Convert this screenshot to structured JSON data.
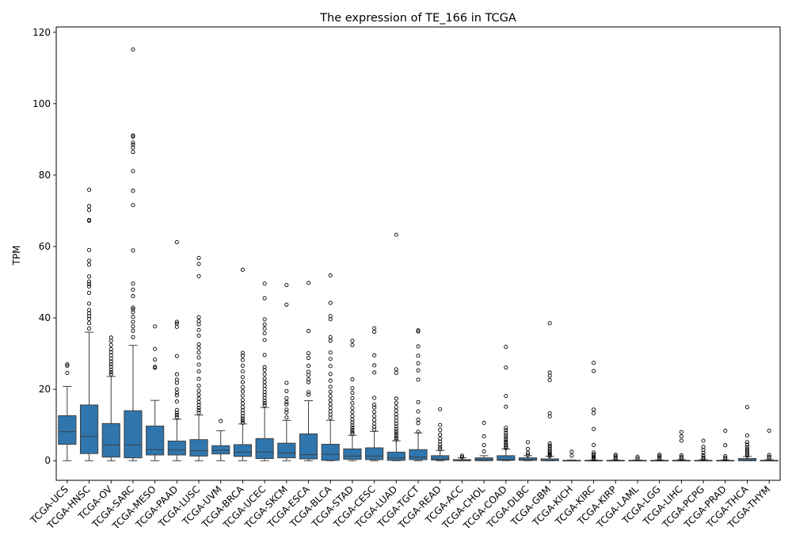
{
  "chart_data": {
    "type": "box",
    "title": "The expression of TE_166 in TCGA",
    "xlabel": "",
    "ylabel": "TPM",
    "ylim": [
      -5.5,
      121.5
    ],
    "yticks": [
      0,
      20,
      40,
      60,
      80,
      100,
      120
    ],
    "grid": false,
    "box_color": "#2f76ae",
    "categories": [
      "TCGA-UCS",
      "TCGA-HNSC",
      "TCGA-OV",
      "TCGA-SARC",
      "TCGA-MESO",
      "TCGA-PAAD",
      "TCGA-LUSC",
      "TCGA-UVM",
      "TCGA-BRCA",
      "TCGA-UCEC",
      "TCGA-SKCM",
      "TCGA-ESCA",
      "TCGA-BLCA",
      "TCGA-STAD",
      "TCGA-CESC",
      "TCGA-LUAD",
      "TCGA-TGCT",
      "TCGA-READ",
      "TCGA-ACC",
      "TCGA-CHOL",
      "TCGA-COAD",
      "TCGA-DLBC",
      "TCGA-GBM",
      "TCGA-KICH",
      "TCGA-KIRC",
      "TCGA-KIRP",
      "TCGA-LAML",
      "TCGA-LGG",
      "TCGA-LIHC",
      "TCGA-PCPG",
      "TCGA-PRAD",
      "TCGA-THCA",
      "TCGA-THYM"
    ],
    "boxes": [
      {
        "whislo": 0.0,
        "q1": 4.6,
        "med": 8.1,
        "q3": 12.6,
        "whishi": 20.8,
        "fliers": [
          24.6,
          26.6,
          27.0
        ]
      },
      {
        "whislo": 0.0,
        "q1": 2.0,
        "med": 6.8,
        "q3": 15.6,
        "whishi": 36.0,
        "fliers": [
          37.0,
          38.5,
          39.7,
          40.5,
          41.3,
          42.2,
          44.0,
          47.0,
          48.8,
          49.5,
          50.2,
          51.6,
          54.9,
          56.0,
          59.0,
          67.2,
          67.4,
          70.2,
          71.3,
          75.9
        ]
      },
      {
        "whislo": 0.0,
        "q1": 1.0,
        "med": 4.4,
        "q3": 10.4,
        "whishi": 23.6,
        "fliers": [
          24.2,
          24.8,
          25.5,
          26.3,
          27.0,
          27.8,
          28.6,
          29.5,
          30.4,
          31.2,
          32.4,
          33.6,
          34.5
        ]
      },
      {
        "whislo": 0.0,
        "q1": 0.8,
        "med": 4.4,
        "q3": 14.0,
        "whishi": 32.3,
        "fliers": [
          34.6,
          36.4,
          37.6,
          38.9,
          40.3,
          41.6,
          42.4,
          42.9,
          46.1,
          47.9,
          49.6,
          58.9,
          71.6,
          75.6,
          81.1,
          86.5,
          87.7,
          88.5,
          89.1,
          90.8,
          91.1,
          115.2
        ]
      },
      {
        "whislo": 0.0,
        "q1": 1.6,
        "med": 3.1,
        "q3": 9.7,
        "whishi": 16.9,
        "fliers": [
          26.0,
          26.3,
          28.3,
          31.3,
          37.6
        ]
      },
      {
        "whislo": 0.0,
        "q1": 1.6,
        "med": 3.0,
        "q3": 5.5,
        "whishi": 11.6,
        "fliers": [
          12.2,
          12.8,
          13.4,
          14.2,
          16.6,
          18.3,
          19.0,
          20.0,
          21.8,
          22.7,
          24.2,
          29.3,
          37.5,
          38.4,
          38.9,
          61.2
        ]
      },
      {
        "whislo": 0.0,
        "q1": 1.3,
        "med": 2.8,
        "q3": 5.9,
        "whishi": 12.8,
        "fliers": [
          13.4,
          14.1,
          14.8,
          15.6,
          16.4,
          17.4,
          18.5,
          19.6,
          21.0,
          22.9,
          25.0,
          26.9,
          28.9,
          30.3,
          31.6,
          32.6,
          35.0,
          36.6,
          38.2,
          39.1,
          40.2,
          51.7,
          55.1,
          56.8
        ]
      },
      {
        "whislo": 0.0,
        "q1": 1.9,
        "med": 2.9,
        "q3": 4.2,
        "whishi": 8.4,
        "fliers": [
          11.1
        ]
      },
      {
        "whislo": 0.0,
        "q1": 1.2,
        "med": 2.4,
        "q3": 4.5,
        "whishi": 10.3,
        "fliers": [
          10.6,
          11.2,
          11.8,
          12.5,
          13.3,
          14.1,
          15.0,
          16.0,
          17.0,
          18.2,
          19.4,
          20.6,
          22.0,
          23.4,
          25.0,
          26.6,
          28.2,
          29.4,
          30.2,
          53.5
        ]
      },
      {
        "whislo": 0.0,
        "q1": 0.6,
        "med": 2.4,
        "q3": 6.2,
        "whishi": 14.9,
        "fliers": [
          15.5,
          16.1,
          16.8,
          17.6,
          18.4,
          19.2,
          20.1,
          21.0,
          22.0,
          23.0,
          24.2,
          25.4,
          26.2,
          29.6,
          33.8,
          35.7,
          37.0,
          38.2,
          39.6,
          45.5,
          49.6
        ]
      },
      {
        "whislo": 0.0,
        "q1": 0.8,
        "med": 2.2,
        "q3": 4.9,
        "whishi": 11.3,
        "fliers": [
          12.1,
          13.5,
          14.3,
          15.8,
          16.4,
          17.5,
          19.5,
          21.8,
          43.7,
          49.2
        ]
      },
      {
        "whislo": 0.0,
        "q1": 0.5,
        "med": 1.7,
        "q3": 7.5,
        "whishi": 16.8,
        "fliers": [
          18.5,
          19.2,
          22.0,
          22.8,
          24.0,
          24.9,
          26.6,
          28.8,
          30.1,
          36.3,
          49.8
        ]
      },
      {
        "whislo": 0.0,
        "q1": 0.1,
        "med": 1.8,
        "q3": 4.6,
        "whishi": 11.3,
        "fliers": [
          12.0,
          12.9,
          13.8,
          14.8,
          15.8,
          16.9,
          18.1,
          19.3,
          20.7,
          22.4,
          24.3,
          26.5,
          28.5,
          30.3,
          33.6,
          34.6,
          39.6,
          40.5,
          44.2,
          51.9
        ]
      },
      {
        "whislo": 0.0,
        "q1": 0.4,
        "med": 1.3,
        "q3": 3.3,
        "whishi": 7.1,
        "fliers": [
          7.5,
          8.0,
          8.6,
          9.2,
          9.9,
          10.7,
          11.5,
          12.5,
          13.6,
          14.8,
          16.1,
          17.5,
          19.0,
          20.3,
          22.8,
          32.4,
          33.6
        ]
      },
      {
        "whislo": 0.0,
        "q1": 0.3,
        "med": 1.3,
        "q3": 3.6,
        "whishi": 8.2,
        "fliers": [
          8.7,
          9.5,
          10.4,
          11.4,
          12.5,
          13.7,
          14.9,
          15.7,
          17.6,
          24.7,
          26.7,
          29.5,
          36.1,
          37.1
        ]
      },
      {
        "whislo": 0.0,
        "q1": 0.1,
        "med": 0.8,
        "q3": 2.4,
        "whishi": 5.6,
        "fliers": [
          5.9,
          6.4,
          7.0,
          7.6,
          8.2,
          8.9,
          9.6,
          10.4,
          11.2,
          12.1,
          13.0,
          14.0,
          15.0,
          16.2,
          17.4,
          24.6,
          25.6,
          63.3
        ]
      },
      {
        "whislo": 0.0,
        "q1": 0.3,
        "med": 1.0,
        "q3": 3.1,
        "whishi": 7.8,
        "fliers": [
          8.1,
          10.5,
          11.5,
          13.8,
          16.4,
          22.7,
          25.3,
          27.3,
          29.4,
          32.0,
          36.2,
          36.5
        ]
      },
      {
        "whislo": 0.0,
        "q1": 0.2,
        "med": 0.4,
        "q3": 1.4,
        "whishi": 2.9,
        "fliers": [
          3.2,
          3.8,
          4.5,
          5.3,
          6.2,
          7.3,
          8.6,
          10.0,
          14.4
        ]
      },
      {
        "whislo": 0.0,
        "q1": 0.0,
        "med": 0.0,
        "q3": 0.3,
        "whishi": 0.8,
        "fliers": [
          1.0,
          1.4
        ]
      },
      {
        "whislo": 0.0,
        "q1": 0.0,
        "med": 0.3,
        "q3": 0.8,
        "whishi": 1.4,
        "fliers": [
          2.6,
          4.4,
          6.8,
          10.6
        ]
      },
      {
        "whislo": 0.0,
        "q1": 0.1,
        "med": 0.3,
        "q3": 1.4,
        "whishi": 3.3,
        "fliers": [
          3.5,
          3.9,
          4.3,
          4.8,
          5.3,
          5.9,
          6.5,
          7.1,
          7.8,
          8.5,
          9.2,
          15.1,
          18.1,
          26.1,
          31.9
        ]
      },
      {
        "whislo": 0.0,
        "q1": 0.1,
        "med": 0.3,
        "q3": 0.8,
        "whishi": 1.4,
        "fliers": [
          1.6,
          2.2,
          3.3,
          5.2
        ]
      },
      {
        "whislo": 0.0,
        "q1": 0.0,
        "med": 0.1,
        "q3": 0.5,
        "whishi": 1.2,
        "fliers": [
          1.3,
          1.6,
          1.9,
          2.3,
          2.7,
          3.2,
          3.7,
          4.2,
          4.8,
          12.4,
          13.3,
          22.6,
          23.8,
          24.7,
          38.5
        ]
      },
      {
        "whislo": 0.0,
        "q1": 0.0,
        "med": 0.0,
        "q3": 0.1,
        "whishi": 0.2,
        "fliers": [
          1.4,
          2.5
        ]
      },
      {
        "whislo": 0.0,
        "q1": 0.0,
        "med": 0.0,
        "q3": 0.1,
        "whishi": 0.2,
        "fliers": [
          0.4,
          0.7,
          1.0,
          1.4,
          1.8,
          2.3,
          4.4,
          8.9,
          13.3,
          14.3,
          25.1,
          27.4
        ]
      },
      {
        "whislo": 0.0,
        "q1": 0.0,
        "med": 0.0,
        "q3": 0.1,
        "whishi": 0.2,
        "fliers": [
          0.5,
          0.9,
          1.3,
          1.7
        ]
      },
      {
        "whislo": 0.0,
        "q1": 0.0,
        "med": 0.0,
        "q3": 0.1,
        "whishi": 0.2,
        "fliers": [
          0.6,
          1.1
        ]
      },
      {
        "whislo": 0.0,
        "q1": 0.0,
        "med": 0.0,
        "q3": 0.1,
        "whishi": 0.2,
        "fliers": [
          0.5,
          0.9,
          1.3,
          1.7
        ]
      },
      {
        "whislo": 0.0,
        "q1": 0.0,
        "med": 0.0,
        "q3": 0.1,
        "whishi": 0.3,
        "fliers": [
          0.6,
          1.0,
          1.5,
          5.6,
          6.8,
          8.0
        ]
      },
      {
        "whislo": 0.0,
        "q1": 0.0,
        "med": 0.0,
        "q3": 0.1,
        "whishi": 0.3,
        "fliers": [
          0.5,
          0.9,
          1.5,
          2.2,
          3.0,
          3.9,
          5.6
        ]
      },
      {
        "whislo": 0.0,
        "q1": 0.0,
        "med": 0.0,
        "q3": 0.1,
        "whishi": 0.2,
        "fliers": [
          0.4,
          0.8,
          1.3,
          4.3,
          8.4
        ]
      },
      {
        "whislo": 0.0,
        "q1": 0.0,
        "med": 0.2,
        "q3": 0.6,
        "whishi": 1.2,
        "fliers": [
          1.4,
          1.8,
          2.2,
          2.7,
          3.2,
          3.8,
          4.5,
          5.2,
          7.1,
          15.0
        ]
      },
      {
        "whislo": 0.0,
        "q1": 0.0,
        "med": 0.0,
        "q3": 0.1,
        "whishi": 0.3,
        "fliers": [
          0.7,
          1.1,
          1.6,
          8.4
        ]
      }
    ]
  }
}
